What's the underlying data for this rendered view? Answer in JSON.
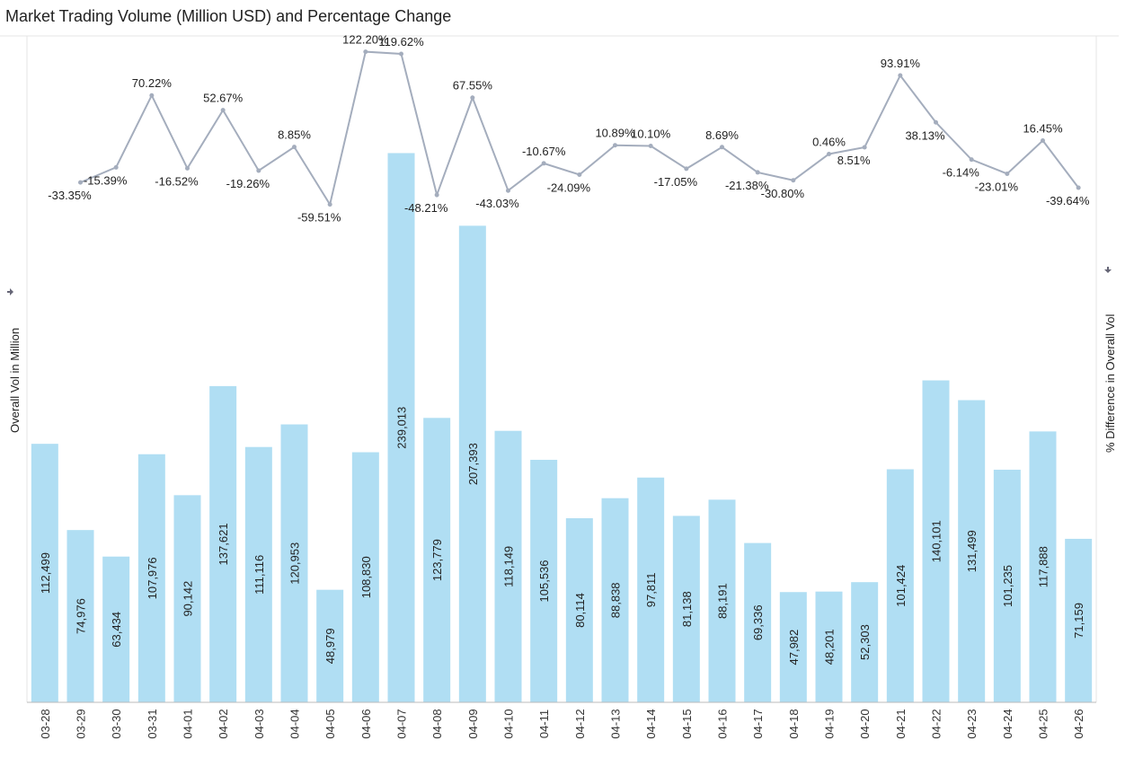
{
  "chart_data": {
    "type": "bar-line",
    "title": "Market Trading Volume (Million USD) and Percentage Change",
    "y_label": "Overall Vol in Million",
    "y2_label": "% Difference in Overall Vol",
    "categories": [
      "03-28",
      "03-29",
      "03-30",
      "03-31",
      "04-01",
      "04-02",
      "04-03",
      "04-04",
      "04-05",
      "04-06",
      "04-07",
      "04-08",
      "04-09",
      "04-10",
      "04-11",
      "04-12",
      "04-13",
      "04-14",
      "04-15",
      "04-16",
      "04-17",
      "04-18",
      "04-19",
      "04-20",
      "04-21",
      "04-22",
      "04-23",
      "04-24",
      "04-25",
      "04-26"
    ],
    "ylim": [
      0,
      290000
    ],
    "y2lim": [
      -652,
      141
    ],
    "series": [
      {
        "name": "Overall Vol in Million",
        "type": "bar",
        "color": "#b0def3",
        "values": [
          112499,
          74976,
          63434,
          107976,
          90142,
          137621,
          111116,
          120953,
          48979,
          108830,
          239013,
          123779,
          207393,
          118149,
          105536,
          80114,
          88838,
          97811,
          81138,
          88191,
          69336,
          47982,
          48201,
          52303,
          101424,
          140101,
          131499,
          101235,
          117888,
          71159
        ],
        "value_labels": [
          "112,499",
          "74,976",
          "63,434",
          "107,976",
          "90,142",
          "137,621",
          "111,116",
          "120,953",
          "48,979",
          "108,830",
          "239,013",
          "123,779",
          "207,393",
          "118,149",
          "105,536",
          "80,114",
          "88,838",
          "97,811",
          "81,138",
          "88,191",
          "69,336",
          "47,982",
          "48,201",
          "52,303",
          "101,424",
          "140,101",
          "131,499",
          "101,235",
          "117,888",
          "71,159"
        ]
      },
      {
        "name": "% Difference in Overall Vol",
        "type": "line",
        "axis": "y2",
        "color": "#a4adbd",
        "values": [
          null,
          -33.35,
          -15.39,
          70.22,
          -16.52,
          52.67,
          -19.26,
          8.85,
          -59.51,
          122.2,
          119.62,
          -48.21,
          67.55,
          -43.03,
          -10.67,
          -24.09,
          10.89,
          10.1,
          -17.05,
          8.69,
          -21.38,
          -30.8,
          0.46,
          8.51,
          93.91,
          38.13,
          -6.14,
          -23.01,
          16.45,
          -39.64
        ],
        "value_labels": [
          null,
          "-33.35%",
          "-15.39%",
          "70.22%",
          "-16.52%",
          "52.67%",
          "-19.26%",
          "8.85%",
          "-59.51%",
          "122.20%",
          "119.62%",
          "-48.21%",
          "67.55%",
          "-43.03%",
          "-10.67%",
          "-24.09%",
          "10.89%",
          "10.10%",
          "-17.05%",
          "8.69%",
          "-21.38%",
          "-30.80%",
          "0.46%",
          "8.51%",
          "93.91%",
          "38.13%",
          "-6.14%",
          "-23.01%",
          "16.45%",
          "-39.64%"
        ]
      }
    ]
  }
}
